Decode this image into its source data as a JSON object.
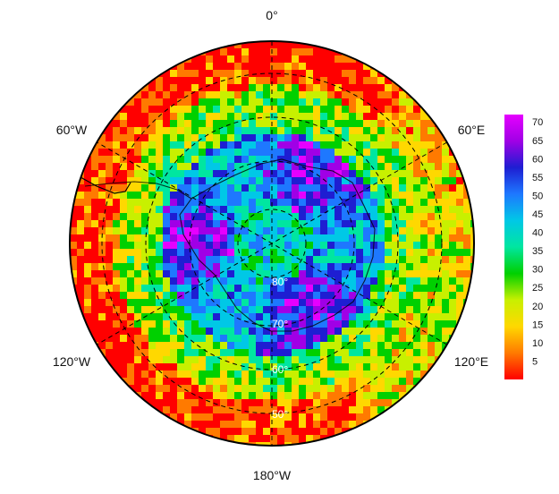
{
  "map": {
    "projection": "south-polar stereographic",
    "longitude_labels": [
      {
        "id": "lon-0",
        "text": "0°"
      },
      {
        "id": "lon-60e",
        "text": "60°E"
      },
      {
        "id": "lon-120e",
        "text": "120°E"
      },
      {
        "id": "lon-180w",
        "text": "180°W"
      },
      {
        "id": "lon-120w",
        "text": "120°W"
      },
      {
        "id": "lon-60w",
        "text": "60°W"
      }
    ],
    "latitude_labels": [
      "80°",
      "70°",
      "60°",
      "50°"
    ],
    "grid_style": "dashed",
    "coastline": "Antarctica",
    "data_field": "gridded values, lowest (red) over the outer ring, highest (magenta) around Antarctica"
  },
  "colorbar": {
    "placement": "right",
    "range": [
      0,
      72
    ],
    "tick_labels": [
      "70",
      "65",
      "60",
      "55",
      "50",
      "45",
      "40",
      "35",
      "30",
      "25",
      "20",
      "15",
      "10",
      "5"
    ],
    "colors": [
      "#ff0000",
      "#ff7a00",
      "#ffd800",
      "#c8f000",
      "#00d000",
      "#00e6a0",
      "#00c8e6",
      "#1e78ff",
      "#1e1ed2",
      "#a000e6",
      "#e600ff"
    ]
  }
}
